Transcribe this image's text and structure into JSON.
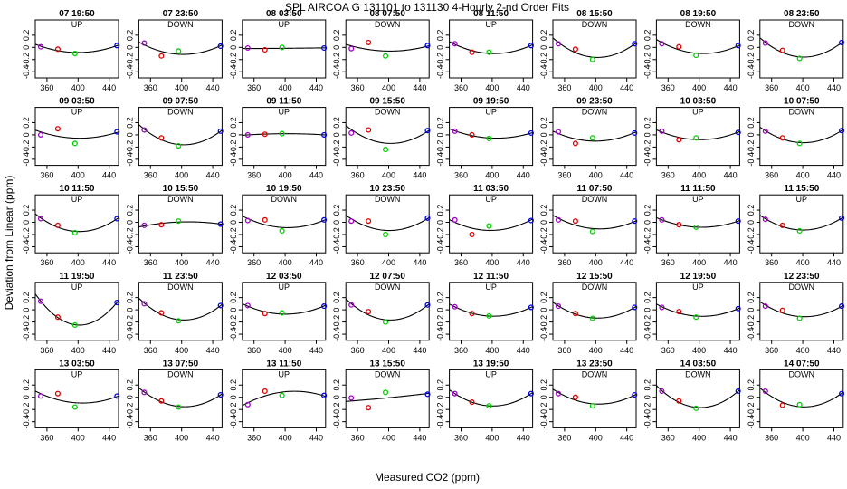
{
  "chart_data": {
    "type": "scatter",
    "title": "SPL   AIRCOA G   131101 to 131130   4-Hourly 2-nd Order Fits",
    "xlabel": "Measured CO2 (ppm)",
    "ylabel": "Deviation from Linear (ppm)",
    "xlim": [
      345,
      452
    ],
    "ylim": [
      -0.5,
      0.45
    ],
    "xticks": [
      360,
      400,
      440
    ],
    "yticks": [
      -0.4,
      -0.2,
      0.0,
      0.2
    ],
    "ytick_labels": [
      "-0.4",
      "-0.2",
      "0",
      "0.2"
    ],
    "grid": false,
    "standard_x": [
      352,
      374,
      396,
      450
    ],
    "point_colors": [
      "#a000c8",
      "#e00000",
      "#00d000",
      "#0000e0"
    ],
    "fit_color": "#000000",
    "panels": [
      {
        "title": "07 19:50",
        "dir": "UP",
        "y": [
          0.01,
          -0.03,
          -0.1,
          0.03
        ]
      },
      {
        "title": "07 23:50",
        "dir": "DOWN",
        "y": [
          0.07,
          -0.14,
          -0.06,
          0.02
        ]
      },
      {
        "title": "08 03:50",
        "dir": "UP",
        "y": [
          -0.01,
          -0.04,
          0.0,
          -0.01
        ]
      },
      {
        "title": "08 07:50",
        "dir": "DOWN",
        "y": [
          -0.02,
          0.08,
          -0.14,
          0.03
        ]
      },
      {
        "title": "08 11:50",
        "dir": "UP",
        "y": [
          0.06,
          -0.08,
          -0.08,
          0.03
        ]
      },
      {
        "title": "08 15:50",
        "dir": "DOWN",
        "y": [
          0.06,
          -0.03,
          -0.2,
          0.06
        ]
      },
      {
        "title": "08 19:50",
        "dir": "DOWN",
        "y": [
          0.06,
          0.01,
          -0.13,
          0.03
        ]
      },
      {
        "title": "08 23:50",
        "dir": "DOWN",
        "y": [
          0.07,
          -0.05,
          -0.18,
          0.08
        ]
      },
      {
        "title": "09 03:50",
        "dir": "UP",
        "y": [
          0.0,
          0.1,
          -0.14,
          0.05
        ]
      },
      {
        "title": "09 07:50",
        "dir": "DOWN",
        "y": [
          0.08,
          -0.05,
          -0.18,
          0.06
        ]
      },
      {
        "title": "09 11:50",
        "dir": "UP",
        "y": [
          0.0,
          0.01,
          0.02,
          0.0
        ]
      },
      {
        "title": "09 15:50",
        "dir": "DOWN",
        "y": [
          0.03,
          0.08,
          -0.24,
          0.07
        ]
      },
      {
        "title": "09 19:50",
        "dir": "UP",
        "y": [
          0.06,
          0.0,
          -0.06,
          0.03
        ]
      },
      {
        "title": "09 23:50",
        "dir": "DOWN",
        "y": [
          0.05,
          -0.14,
          -0.05,
          0.03
        ]
      },
      {
        "title": "10 03:50",
        "dir": "UP",
        "y": [
          0.06,
          -0.08,
          -0.05,
          0.04
        ]
      },
      {
        "title": "10 07:50",
        "dir": "DOWN",
        "y": [
          0.06,
          -0.05,
          -0.14,
          0.07
        ]
      },
      {
        "title": "10 11:50",
        "dir": "UP",
        "y": [
          0.06,
          -0.05,
          -0.17,
          0.06
        ]
      },
      {
        "title": "10 15:50",
        "dir": "DOWN",
        "y": [
          -0.05,
          -0.04,
          0.02,
          -0.03
        ]
      },
      {
        "title": "10 19:50",
        "dir": "DOWN",
        "y": [
          0.03,
          0.04,
          -0.14,
          0.04
        ]
      },
      {
        "title": "10 23:50",
        "dir": "DOWN",
        "y": [
          0.02,
          0.02,
          -0.2,
          0.07
        ]
      },
      {
        "title": "11 03:50",
        "dir": "UP",
        "y": [
          0.04,
          -0.2,
          -0.06,
          0.03
        ]
      },
      {
        "title": "11 07:50",
        "dir": "DOWN",
        "y": [
          0.04,
          0.02,
          -0.15,
          0.02
        ]
      },
      {
        "title": "11 11:50",
        "dir": "UP",
        "y": [
          0.04,
          -0.04,
          -0.08,
          0.02
        ]
      },
      {
        "title": "11 15:50",
        "dir": "UP",
        "y": [
          0.05,
          -0.05,
          -0.14,
          0.07
        ]
      },
      {
        "title": "11 19:50",
        "dir": "UP",
        "y": [
          0.14,
          -0.12,
          -0.25,
          0.12
        ]
      },
      {
        "title": "11 23:50",
        "dir": "DOWN",
        "y": [
          0.1,
          -0.05,
          -0.18,
          0.07
        ]
      },
      {
        "title": "12 03:50",
        "dir": "UP",
        "y": [
          0.07,
          -0.06,
          -0.05,
          0.06
        ]
      },
      {
        "title": "12 07:50",
        "dir": "DOWN",
        "y": [
          0.08,
          -0.03,
          -0.2,
          0.08
        ]
      },
      {
        "title": "12 11:50",
        "dir": "UP",
        "y": [
          0.05,
          -0.06,
          -0.1,
          0.04
        ]
      },
      {
        "title": "12 15:50",
        "dir": "DOWN",
        "y": [
          0.06,
          -0.06,
          -0.14,
          0.04
        ]
      },
      {
        "title": "12 19:50",
        "dir": "UP",
        "y": [
          0.04,
          -0.03,
          -0.12,
          0.02
        ]
      },
      {
        "title": "12 23:50",
        "dir": "DOWN",
        "y": [
          0.06,
          -0.01,
          -0.14,
          0.06
        ]
      },
      {
        "title": "13 03:50",
        "dir": "UP",
        "y": [
          0.02,
          0.06,
          -0.16,
          0.02
        ]
      },
      {
        "title": "13 07:50",
        "dir": "DOWN",
        "y": [
          0.08,
          -0.06,
          -0.16,
          0.04
        ]
      },
      {
        "title": "13 11:50",
        "dir": "UP",
        "y": [
          -0.12,
          0.1,
          0.03,
          0.03
        ]
      },
      {
        "title": "13 15:50",
        "dir": "DOWN",
        "y": [
          -0.01,
          -0.17,
          0.08,
          0.05
        ]
      },
      {
        "title": "13 19:50",
        "dir": "UP",
        "y": [
          0.06,
          -0.08,
          -0.14,
          0.06
        ]
      },
      {
        "title": "13 23:50",
        "dir": "DOWN",
        "y": [
          0.06,
          0.0,
          -0.14,
          0.04
        ]
      },
      {
        "title": "14 03:50",
        "dir": "DOWN",
        "y": [
          0.1,
          -0.06,
          -0.18,
          0.1
        ]
      },
      {
        "title": "14 07:50",
        "dir": "DOWN",
        "y": [
          0.1,
          -0.13,
          -0.12,
          0.06
        ]
      }
    ]
  }
}
